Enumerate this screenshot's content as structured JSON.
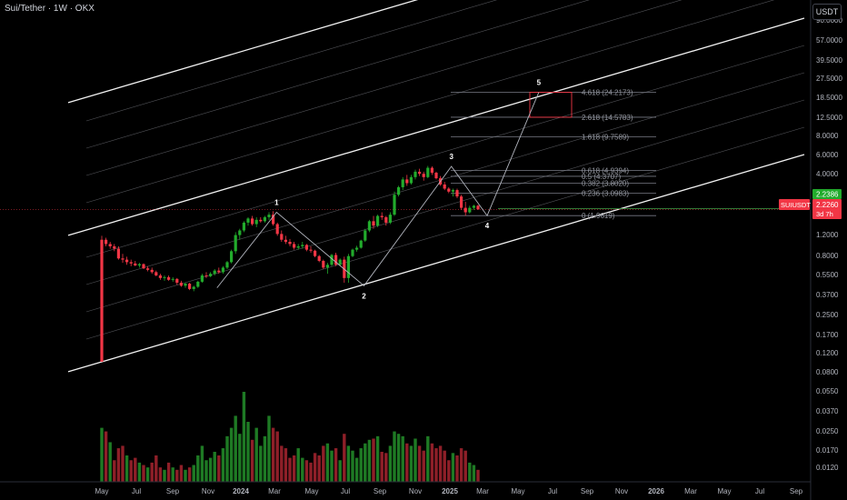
{
  "header": {
    "symbol_title": "Sui/Tether · 1W · OKX",
    "currency": "USDT"
  },
  "chart_data": {
    "type": "candlestick",
    "log_scale": true,
    "grid": false,
    "y_ticks": [
      "90.0000",
      "57.0000",
      "39.5000",
      "27.5000",
      "18.5000",
      "12.5000",
      "8.0000",
      "6.0000",
      "4.0000",
      "2.2260",
      "1.2000",
      "0.8000",
      "0.5500",
      "0.3700",
      "0.2500",
      "0.1700",
      "0.1200",
      "0.0800",
      "0.0550",
      "0.0370",
      "0.0250",
      "0.0170",
      "0.0120"
    ],
    "x_ticks": [
      "May",
      "Jul",
      "Sep",
      "Nov",
      "2024",
      "Mar",
      "May",
      "Jul",
      "Sep",
      "Nov",
      "2025",
      "Mar",
      "May",
      "Jul",
      "Sep",
      "Nov",
      "2026",
      "Mar",
      "May",
      "Jul",
      "Sep"
    ],
    "price_label": {
      "symbol": "SUIUSDT",
      "price": "2.2260",
      "countdown": "3d 7h",
      "alt_price": "2.2386"
    },
    "waves": [
      {
        "label": "1",
        "date": "2024-03-04",
        "price": 2.1
      },
      {
        "label": "2",
        "date": "2024-08-05",
        "price": 0.47
      },
      {
        "label": "3",
        "date": "2025-01-06",
        "price": 5.35
      },
      {
        "label": "4",
        "date": "2025-03-10",
        "price": 1.96
      },
      {
        "label": "5",
        "date": "2025-06-09",
        "price": 24.2
      }
    ],
    "fib_levels": [
      {
        "label": "4.618 (24.2173)",
        "value": 24.2173
      },
      {
        "label": "2.618 (14.5783)",
        "value": 14.5783
      },
      {
        "label": "1.618 (9.7589)",
        "value": 9.7589
      },
      {
        "label": "0.618 (4.9394)",
        "value": 4.9394
      },
      {
        "label": "0.5 (4.3707)",
        "value": 4.3707
      },
      {
        "label": "0.382 (3.8020)",
        "value": 3.802
      },
      {
        "label": "0.236 (3.0983)",
        "value": 3.0983
      },
      {
        "label": "0 (1.9619)",
        "value": 1.9619
      }
    ],
    "candles": [
      [
        1.2,
        1.3,
        0.1,
        0.1
      ],
      [
        1.2,
        1.25,
        1.05,
        1.1
      ],
      [
        1.1,
        1.15,
        1.0,
        1.05
      ],
      [
        1.05,
        1.1,
        0.95,
        1.0
      ],
      [
        1.0,
        1.05,
        0.8,
        0.82
      ],
      [
        0.82,
        0.9,
        0.75,
        0.8
      ],
      [
        0.8,
        0.85,
        0.72,
        0.76
      ],
      [
        0.76,
        0.8,
        0.7,
        0.74
      ],
      [
        0.74,
        0.78,
        0.7,
        0.71
      ],
      [
        0.71,
        0.75,
        0.68,
        0.73
      ],
      [
        0.73,
        0.74,
        0.66,
        0.67
      ],
      [
        0.67,
        0.7,
        0.63,
        0.65
      ],
      [
        0.65,
        0.68,
        0.6,
        0.62
      ],
      [
        0.62,
        0.64,
        0.57,
        0.58
      ],
      [
        0.58,
        0.6,
        0.53,
        0.55
      ],
      [
        0.55,
        0.58,
        0.52,
        0.56
      ],
      [
        0.56,
        0.58,
        0.52,
        0.53
      ],
      [
        0.53,
        0.56,
        0.51,
        0.54
      ],
      [
        0.54,
        0.55,
        0.48,
        0.5
      ],
      [
        0.5,
        0.52,
        0.46,
        0.47
      ],
      [
        0.47,
        0.5,
        0.45,
        0.49
      ],
      [
        0.49,
        0.5,
        0.43,
        0.44
      ],
      [
        0.44,
        0.47,
        0.42,
        0.46
      ],
      [
        0.46,
        0.52,
        0.45,
        0.51
      ],
      [
        0.51,
        0.6,
        0.5,
        0.58
      ],
      [
        0.58,
        0.62,
        0.55,
        0.57
      ],
      [
        0.57,
        0.62,
        0.56,
        0.6
      ],
      [
        0.6,
        0.66,
        0.58,
        0.64
      ],
      [
        0.64,
        0.68,
        0.6,
        0.62
      ],
      [
        0.62,
        0.7,
        0.6,
        0.68
      ],
      [
        0.68,
        0.78,
        0.66,
        0.76
      ],
      [
        0.76,
        0.98,
        0.74,
        0.95
      ],
      [
        0.95,
        1.4,
        0.9,
        1.32
      ],
      [
        1.32,
        1.5,
        1.2,
        1.45
      ],
      [
        1.45,
        1.75,
        1.4,
        1.7
      ],
      [
        1.7,
        1.9,
        1.6,
        1.85
      ],
      [
        1.85,
        1.95,
        1.6,
        1.65
      ],
      [
        1.65,
        1.9,
        1.55,
        1.8
      ],
      [
        1.8,
        1.9,
        1.7,
        1.75
      ],
      [
        1.75,
        1.95,
        1.7,
        1.9
      ],
      [
        1.9,
        2.1,
        1.8,
        2.0
      ],
      [
        2.0,
        2.15,
        1.6,
        1.65
      ],
      [
        1.65,
        1.7,
        1.3,
        1.35
      ],
      [
        1.35,
        1.45,
        1.15,
        1.2
      ],
      [
        1.2,
        1.3,
        1.1,
        1.15
      ],
      [
        1.15,
        1.22,
        1.05,
        1.1
      ],
      [
        1.1,
        1.15,
        0.98,
        1.02
      ],
      [
        1.02,
        1.1,
        0.98,
        1.05
      ],
      [
        1.05,
        1.15,
        1.0,
        1.08
      ],
      [
        1.08,
        1.1,
        0.95,
        0.98
      ],
      [
        0.98,
        1.05,
        0.92,
        0.96
      ],
      [
        0.96,
        0.98,
        0.84,
        0.86
      ],
      [
        0.86,
        0.88,
        0.76,
        0.78
      ],
      [
        0.78,
        0.8,
        0.66,
        0.68
      ],
      [
        0.68,
        0.75,
        0.6,
        0.72
      ],
      [
        0.72,
        0.9,
        0.7,
        0.88
      ],
      [
        0.88,
        0.92,
        0.7,
        0.72
      ],
      [
        0.72,
        0.82,
        0.7,
        0.8
      ],
      [
        0.8,
        0.85,
        0.5,
        0.55
      ],
      [
        0.55,
        0.9,
        0.5,
        0.86
      ],
      [
        0.86,
        1.0,
        0.84,
        0.98
      ],
      [
        0.98,
        1.06,
        0.94,
        1.02
      ],
      [
        1.02,
        1.2,
        1.0,
        1.18
      ],
      [
        1.18,
        1.5,
        1.15,
        1.45
      ],
      [
        1.45,
        1.8,
        1.4,
        1.75
      ],
      [
        1.75,
        1.95,
        1.5,
        1.6
      ],
      [
        1.6,
        2.0,
        1.55,
        1.95
      ],
      [
        1.95,
        2.1,
        1.8,
        1.9
      ],
      [
        1.9,
        1.95,
        1.6,
        1.7
      ],
      [
        1.7,
        2.1,
        1.65,
        2.0
      ],
      [
        2.0,
        3.2,
        1.95,
        3.0
      ],
      [
        3.0,
        3.6,
        2.9,
        3.5
      ],
      [
        3.5,
        4.3,
        3.3,
        4.1
      ],
      [
        4.1,
        4.5,
        3.6,
        3.8
      ],
      [
        3.8,
        4.5,
        3.7,
        4.3
      ],
      [
        4.3,
        5.0,
        4.1,
        4.8
      ],
      [
        4.8,
        5.1,
        4.4,
        4.6
      ],
      [
        4.6,
        4.8,
        4.0,
        4.3
      ],
      [
        4.3,
        5.4,
        4.2,
        5.2
      ],
      [
        5.2,
        5.35,
        4.5,
        4.7
      ],
      [
        4.7,
        4.8,
        4.1,
        4.2
      ],
      [
        4.2,
        4.4,
        3.6,
        3.7
      ],
      [
        3.7,
        3.9,
        3.3,
        3.4
      ],
      [
        3.4,
        3.5,
        3.1,
        3.2
      ],
      [
        3.2,
        3.4,
        2.9,
        3.3
      ],
      [
        3.3,
        3.4,
        2.8,
        2.9
      ],
      [
        2.9,
        3.0,
        2.2,
        2.3
      ],
      [
        2.3,
        2.6,
        1.96,
        2.1
      ],
      [
        2.1,
        2.4,
        2.05,
        2.3
      ],
      [
        2.3,
        2.45,
        2.2,
        2.4
      ],
      [
        2.4,
        2.45,
        2.2,
        2.23
      ]
    ],
    "volumes": [
      [
        0.45,
        1
      ],
      [
        0.42,
        0
      ],
      [
        0.33,
        1
      ],
      [
        0.18,
        0
      ],
      [
        0.28,
        0
      ],
      [
        0.3,
        0
      ],
      [
        0.22,
        1
      ],
      [
        0.18,
        0
      ],
      [
        0.2,
        0
      ],
      [
        0.16,
        1
      ],
      [
        0.14,
        0
      ],
      [
        0.12,
        1
      ],
      [
        0.16,
        0
      ],
      [
        0.22,
        0
      ],
      [
        0.12,
        0
      ],
      [
        0.1,
        1
      ],
      [
        0.16,
        0
      ],
      [
        0.12,
        1
      ],
      [
        0.1,
        0
      ],
      [
        0.14,
        0
      ],
      [
        0.1,
        1
      ],
      [
        0.12,
        0
      ],
      [
        0.14,
        1
      ],
      [
        0.22,
        1
      ],
      [
        0.3,
        1
      ],
      [
        0.18,
        1
      ],
      [
        0.2,
        1
      ],
      [
        0.25,
        1
      ],
      [
        0.22,
        0
      ],
      [
        0.28,
        1
      ],
      [
        0.38,
        1
      ],
      [
        0.45,
        1
      ],
      [
        0.55,
        1
      ],
      [
        0.4,
        1
      ],
      [
        0.75,
        1
      ],
      [
        0.5,
        1
      ],
      [
        0.35,
        0
      ],
      [
        0.45,
        1
      ],
      [
        0.3,
        1
      ],
      [
        0.38,
        1
      ],
      [
        0.55,
        1
      ],
      [
        0.45,
        0
      ],
      [
        0.42,
        0
      ],
      [
        0.3,
        0
      ],
      [
        0.28,
        0
      ],
      [
        0.2,
        0
      ],
      [
        0.22,
        0
      ],
      [
        0.28,
        1
      ],
      [
        0.2,
        1
      ],
      [
        0.18,
        0
      ],
      [
        0.16,
        0
      ],
      [
        0.24,
        0
      ],
      [
        0.22,
        0
      ],
      [
        0.3,
        0
      ],
      [
        0.32,
        1
      ],
      [
        0.26,
        1
      ],
      [
        0.28,
        0
      ],
      [
        0.18,
        1
      ],
      [
        0.4,
        0
      ],
      [
        0.3,
        1
      ],
      [
        0.26,
        1
      ],
      [
        0.2,
        1
      ],
      [
        0.28,
        1
      ],
      [
        0.32,
        1
      ],
      [
        0.35,
        1
      ],
      [
        0.36,
        0
      ],
      [
        0.38,
        1
      ],
      [
        0.25,
        0
      ],
      [
        0.24,
        0
      ],
      [
        0.3,
        1
      ],
      [
        0.42,
        1
      ],
      [
        0.4,
        1
      ],
      [
        0.38,
        1
      ],
      [
        0.32,
        0
      ],
      [
        0.3,
        1
      ],
      [
        0.36,
        1
      ],
      [
        0.3,
        0
      ],
      [
        0.26,
        0
      ],
      [
        0.38,
        1
      ],
      [
        0.32,
        0
      ],
      [
        0.28,
        0
      ],
      [
        0.3,
        0
      ],
      [
        0.26,
        0
      ],
      [
        0.18,
        0
      ],
      [
        0.24,
        1
      ],
      [
        0.22,
        0
      ],
      [
        0.28,
        0
      ],
      [
        0.26,
        0
      ],
      [
        0.16,
        1
      ],
      [
        0.14,
        1
      ],
      [
        0.1,
        0
      ]
    ],
    "colors": {
      "up": "#22ab2c",
      "down": "#f23645",
      "channel": "#ffffff",
      "fib": "#787b86",
      "target_box": "#f23645",
      "price_line": "#f23645"
    }
  }
}
